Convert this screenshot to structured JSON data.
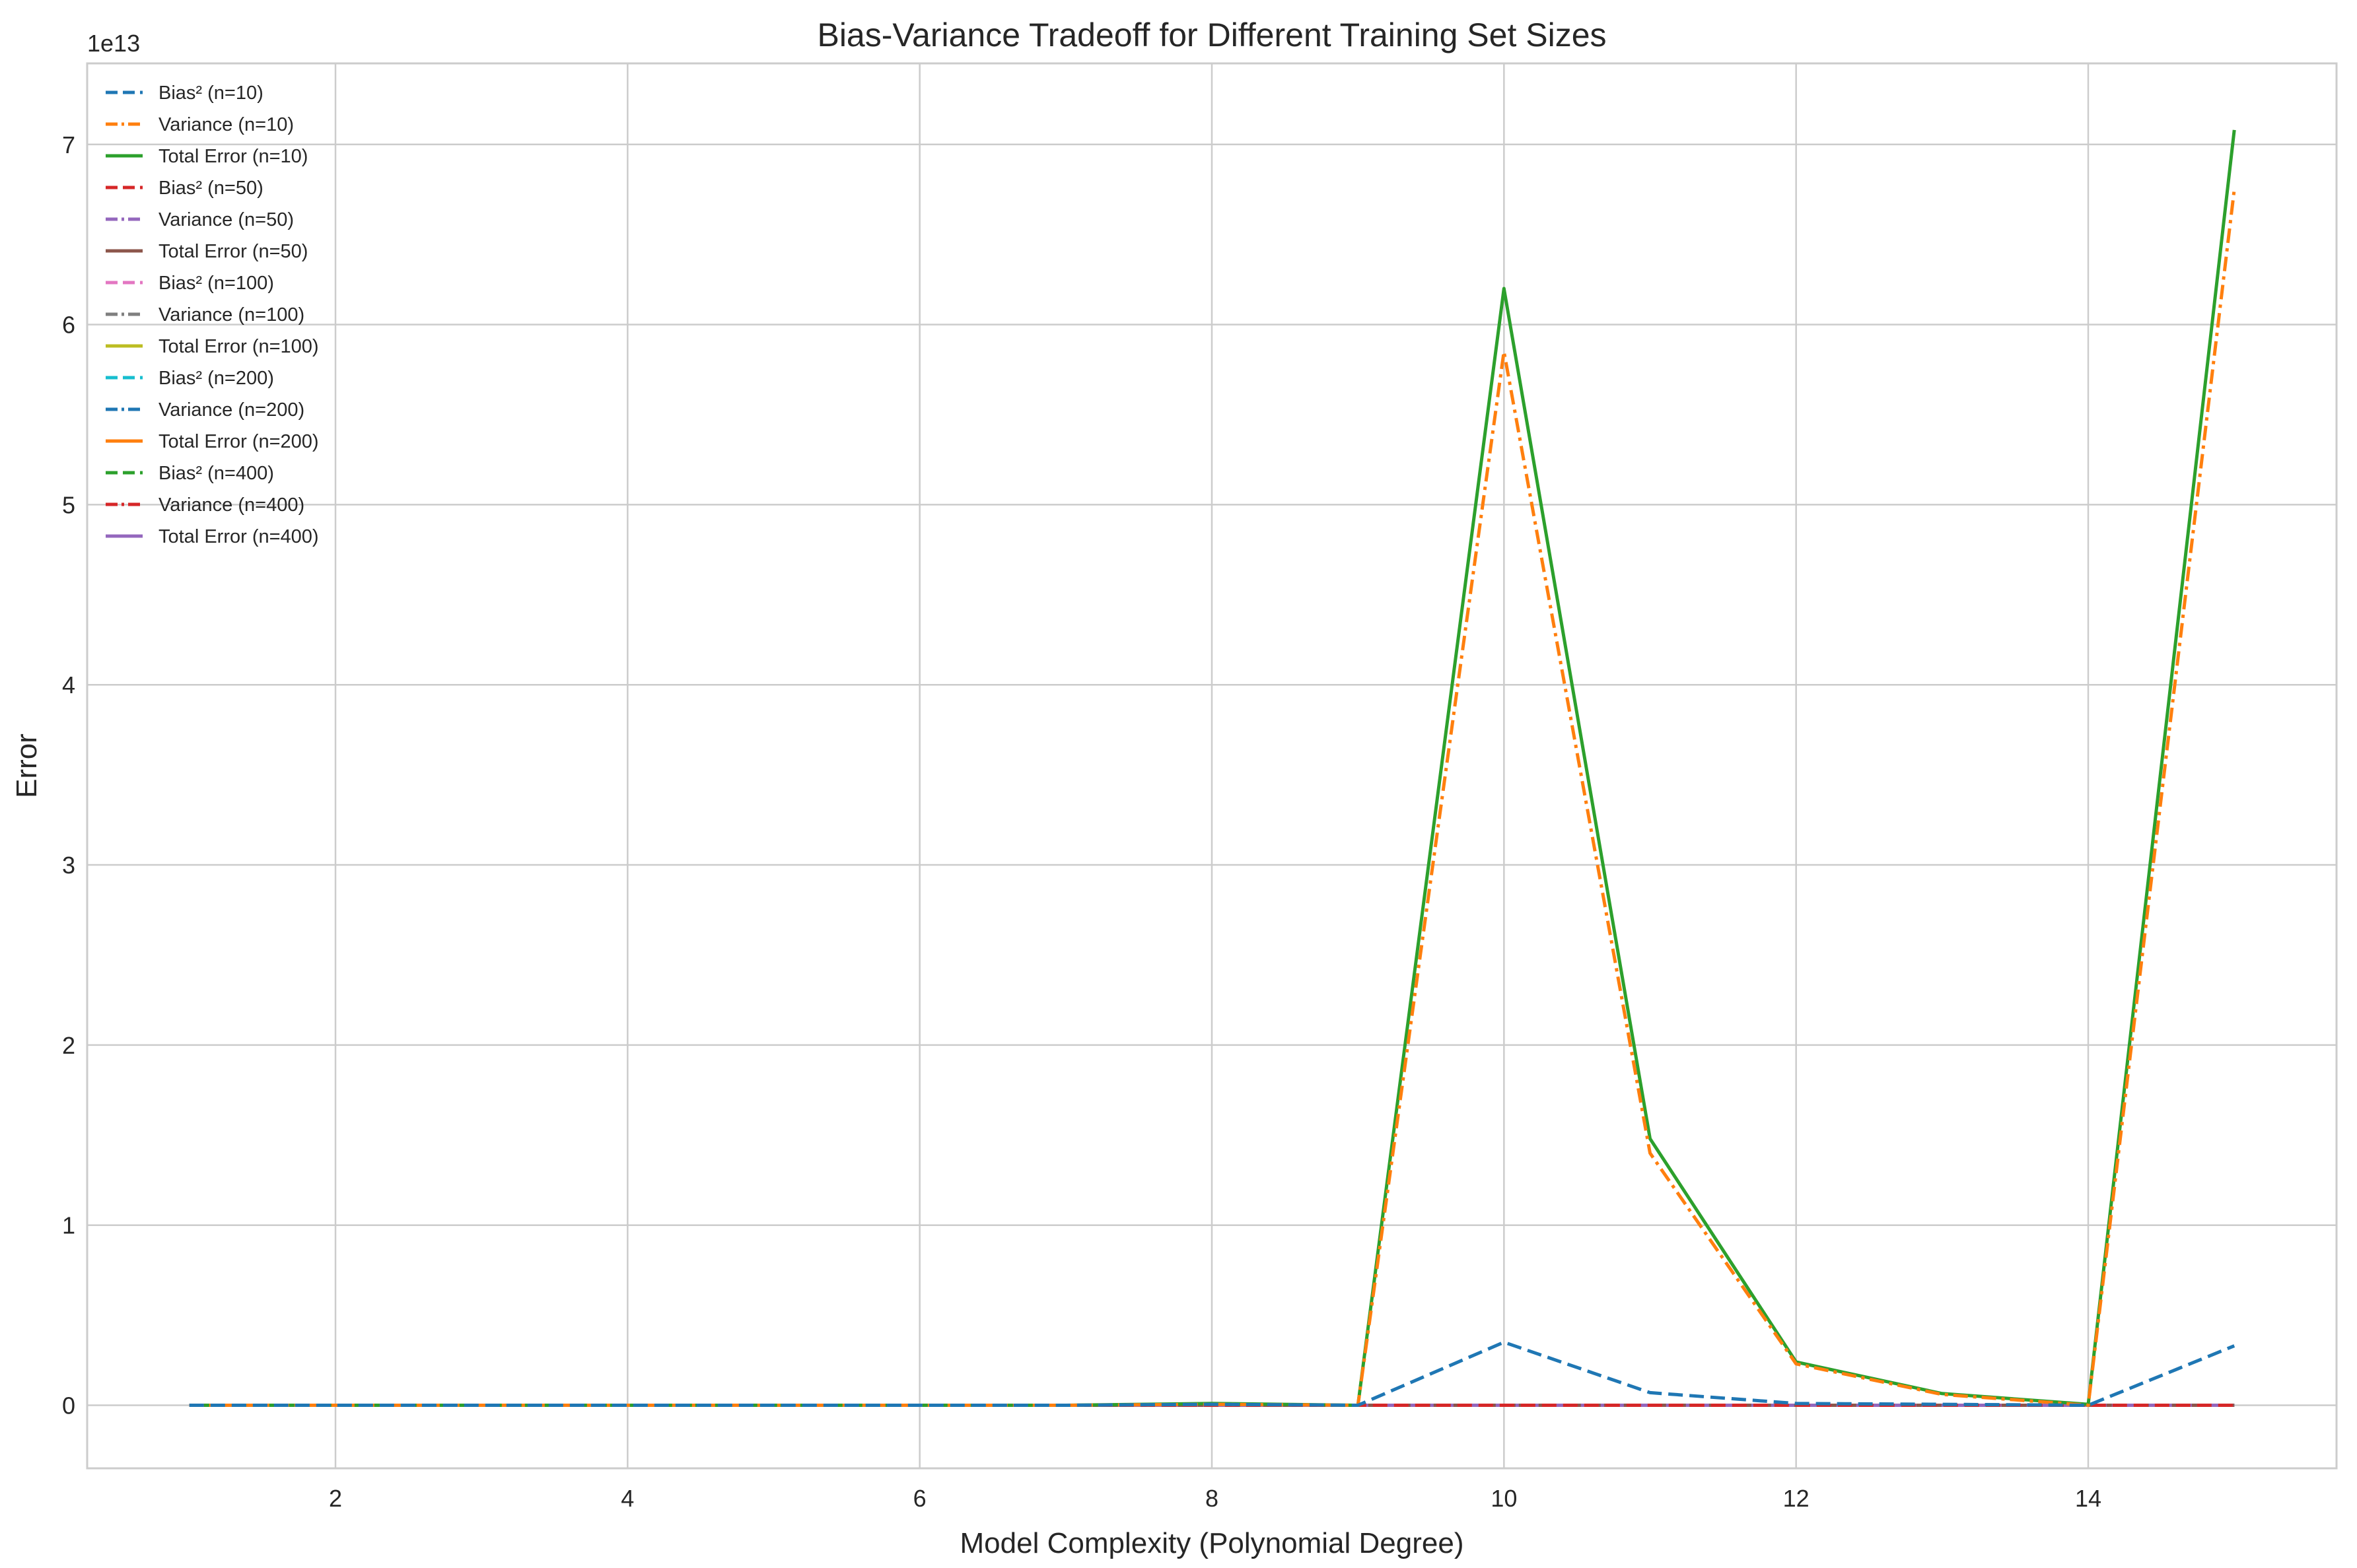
{
  "chart_data": {
    "type": "line",
    "title": "Bias-Variance Tradeoff for Different Training Set Sizes",
    "xlabel": "Model Complexity (Polynomial Degree)",
    "ylabel": "Error",
    "y_offset_label": "1e13",
    "xlim": [
      0.3,
      15.7
    ],
    "ylim": [
      -3.5,
      74.5
    ],
    "y_unit_multiplier": 10000000000000.0,
    "x_ticks": [
      2,
      4,
      6,
      8,
      10,
      12,
      14
    ],
    "y_ticks": [
      0,
      1,
      2,
      3,
      4,
      5,
      6,
      7
    ],
    "grid": true,
    "legend_position": "upper-left",
    "x": [
      1,
      2,
      3,
      4,
      5,
      6,
      7,
      8,
      9,
      10,
      11,
      12,
      13,
      14,
      15
    ],
    "series": [
      {
        "name": "Bias² (n=10)",
        "color": "#1f77b4",
        "dash": "dashed",
        "values": [
          0,
          0,
          0,
          0,
          0,
          0,
          0,
          0.05,
          0,
          3.5,
          0.7,
          0.1,
          0.05,
          0,
          3.3
        ]
      },
      {
        "name": "Variance (n=10)",
        "color": "#ff7f0e",
        "dash": "dashdot",
        "values": [
          0,
          0,
          0,
          0,
          0,
          0,
          0,
          0.05,
          0,
          58.5,
          14.0,
          2.3,
          0.6,
          0,
          67.5
        ]
      },
      {
        "name": "Total Error (n=10)",
        "color": "#2ca02c",
        "dash": "solid",
        "values": [
          0,
          0,
          0,
          0,
          0,
          0,
          0,
          0.1,
          0,
          62.0,
          14.8,
          2.4,
          0.65,
          0.05,
          70.8
        ]
      },
      {
        "name": "Bias² (n=50)",
        "color": "#d62728",
        "dash": "dashed",
        "values": [
          0,
          0,
          0,
          0,
          0,
          0,
          0,
          0,
          0,
          0,
          0,
          0,
          0,
          0,
          0
        ]
      },
      {
        "name": "Variance (n=50)",
        "color": "#9467bd",
        "dash": "dashdot",
        "values": [
          0,
          0,
          0,
          0,
          0,
          0,
          0,
          0,
          0,
          0,
          0,
          0,
          0,
          0,
          0
        ]
      },
      {
        "name": "Total Error (n=50)",
        "color": "#8c564b",
        "dash": "solid",
        "values": [
          0,
          0,
          0,
          0,
          0,
          0,
          0,
          0,
          0,
          0,
          0,
          0,
          0,
          0,
          0
        ]
      },
      {
        "name": "Bias² (n=100)",
        "color": "#e377c2",
        "dash": "dashed",
        "values": [
          0,
          0,
          0,
          0,
          0,
          0,
          0,
          0,
          0,
          0,
          0,
          0,
          0,
          0,
          0
        ]
      },
      {
        "name": "Variance (n=100)",
        "color": "#7f7f7f",
        "dash": "dashdot",
        "values": [
          0,
          0,
          0,
          0,
          0,
          0,
          0,
          0,
          0,
          0,
          0,
          0,
          0,
          0,
          0
        ]
      },
      {
        "name": "Total Error (n=100)",
        "color": "#bcbd22",
        "dash": "solid",
        "values": [
          0,
          0,
          0,
          0,
          0,
          0,
          0,
          0,
          0,
          0,
          0,
          0,
          0,
          0,
          0
        ]
      },
      {
        "name": "Bias² (n=200)",
        "color": "#17becf",
        "dash": "dashed",
        "values": [
          0,
          0,
          0,
          0,
          0,
          0,
          0,
          0,
          0,
          0,
          0,
          0,
          0,
          0,
          0
        ]
      },
      {
        "name": "Variance (n=200)",
        "color": "#1f77b4",
        "dash": "dashdot",
        "values": [
          0,
          0,
          0,
          0,
          0,
          0,
          0,
          0,
          0,
          0,
          0,
          0,
          0,
          0,
          0
        ]
      },
      {
        "name": "Total Error (n=200)",
        "color": "#ff7f0e",
        "dash": "solid",
        "values": [
          0,
          0,
          0,
          0,
          0,
          0,
          0,
          0,
          0,
          0,
          0,
          0,
          0,
          0,
          0
        ]
      },
      {
        "name": "Bias² (n=400)",
        "color": "#2ca02c",
        "dash": "dashed",
        "values": [
          0,
          0,
          0,
          0,
          0,
          0,
          0,
          0,
          0,
          0,
          0,
          0,
          0,
          0,
          0
        ]
      },
      {
        "name": "Variance (n=400)",
        "color": "#d62728",
        "dash": "dashdot",
        "values": [
          0,
          0,
          0,
          0,
          0,
          0,
          0,
          0,
          0,
          0,
          0,
          0,
          0,
          0,
          0
        ]
      },
      {
        "name": "Total Error (n=400)",
        "color": "#9467bd",
        "dash": "solid",
        "values": [
          0,
          0,
          0,
          0,
          0,
          0,
          0,
          0,
          0,
          0,
          0,
          0,
          0,
          0,
          0
        ]
      }
    ]
  }
}
